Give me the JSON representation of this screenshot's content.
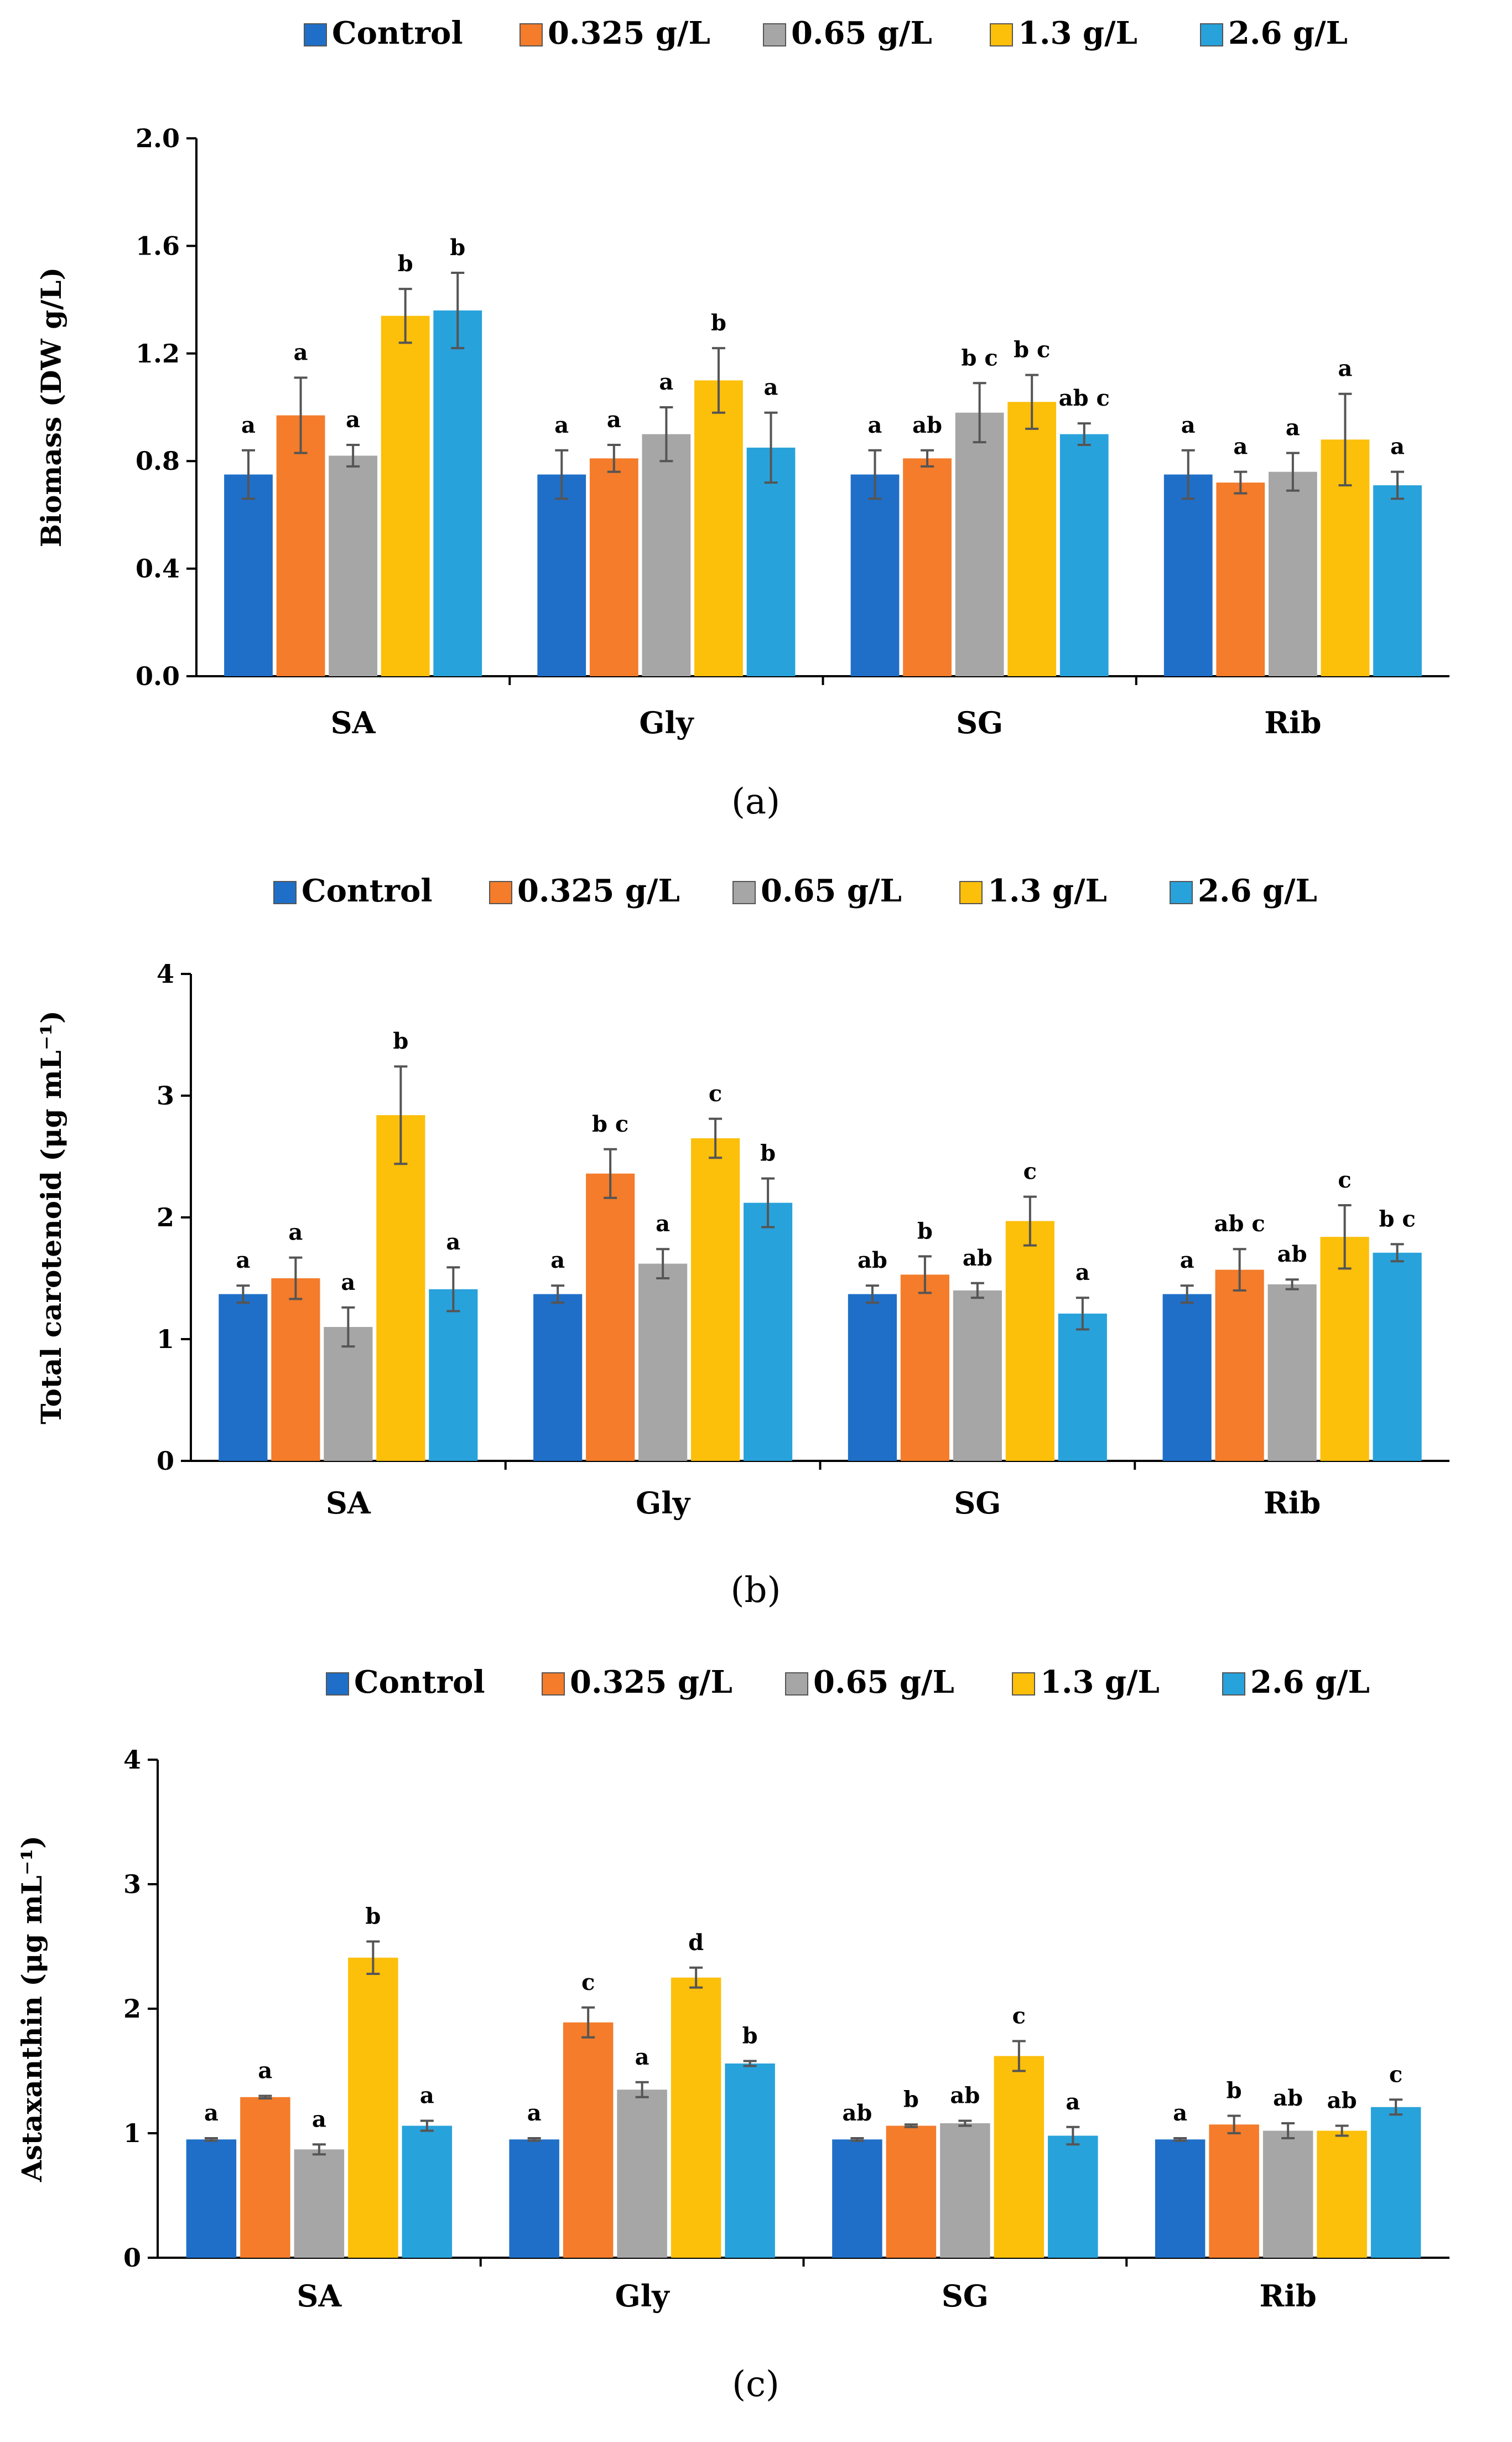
{
  "legend": [
    "Control",
    "0.325 g/L",
    "0.65 g/L",
    "1.3 g/L",
    "2.6 g/L"
  ],
  "colors": [
    "#1f6fc8",
    "#f47c2a",
    "#a6a6a6",
    "#fcbf0a",
    "#28a2db"
  ],
  "chart_data": [
    {
      "type": "bar",
      "caption": "(a)",
      "ylabel": "Biomass (DW g/L)",
      "categories": [
        "SA",
        "Gly",
        "SG",
        "Rib"
      ],
      "ylim": [
        0,
        2.0
      ],
      "yticks": [
        "0.0",
        "0.4",
        "0.8",
        "1.2",
        "1.6",
        "2.0"
      ],
      "ytick_values": [
        0,
        0.4,
        0.8,
        1.2,
        1.6,
        2.0
      ],
      "series": [
        {
          "name": "Control",
          "values": [
            0.75,
            0.75,
            0.75,
            0.75
          ],
          "errors": [
            0.09,
            0.09,
            0.09,
            0.09
          ],
          "letters": [
            "a",
            "a",
            "a",
            "a"
          ]
        },
        {
          "name": "0.325 g/L",
          "values": [
            0.97,
            0.81,
            0.81,
            0.72
          ],
          "errors": [
            0.14,
            0.05,
            0.03,
            0.04
          ],
          "letters": [
            "a",
            "a",
            "ab",
            "a"
          ]
        },
        {
          "name": "0.65 g/L",
          "values": [
            0.82,
            0.9,
            0.98,
            0.76
          ],
          "errors": [
            0.04,
            0.1,
            0.11,
            0.07
          ],
          "letters": [
            "a",
            "a",
            "b c",
            "a"
          ]
        },
        {
          "name": "1.3 g/L",
          "values": [
            1.34,
            1.1,
            1.02,
            0.88
          ],
          "errors": [
            0.1,
            0.12,
            0.1,
            0.17
          ],
          "letters": [
            "b",
            "b",
            "b c",
            "a"
          ]
        },
        {
          "name": "2.6 g/L",
          "values": [
            1.36,
            0.85,
            0.9,
            0.71
          ],
          "errors": [
            0.14,
            0.13,
            0.04,
            0.05
          ],
          "letters": [
            "b",
            "a",
            "ab c",
            "a"
          ]
        }
      ]
    },
    {
      "type": "bar",
      "caption": "(b)",
      "ylabel": "Total carotenoid (μg mL⁻¹)",
      "categories": [
        "SA",
        "Gly",
        "SG",
        "Rib"
      ],
      "ylim": [
        0,
        4
      ],
      "yticks": [
        "0",
        "1",
        "2",
        "3",
        "4"
      ],
      "ytick_values": [
        0,
        1,
        2,
        3,
        4
      ],
      "series": [
        {
          "name": "Control",
          "values": [
            1.37,
            1.37,
            1.37,
            1.37
          ],
          "errors": [
            0.07,
            0.07,
            0.07,
            0.07
          ],
          "letters": [
            "a",
            "a",
            "ab",
            "a"
          ]
        },
        {
          "name": "0.325 g/L",
          "values": [
            1.5,
            2.36,
            1.53,
            1.57
          ],
          "errors": [
            0.17,
            0.2,
            0.15,
            0.17
          ],
          "letters": [
            "a",
            "b c",
            "b",
            "ab c"
          ]
        },
        {
          "name": "0.65 g/L",
          "values": [
            1.1,
            1.62,
            1.4,
            1.45
          ],
          "errors": [
            0.16,
            0.12,
            0.06,
            0.04
          ],
          "letters": [
            "a",
            "a",
            "ab",
            "ab"
          ]
        },
        {
          "name": "1.3 g/L",
          "values": [
            2.84,
            2.65,
            1.97,
            1.84
          ],
          "errors": [
            0.4,
            0.16,
            0.2,
            0.26
          ],
          "letters": [
            "b",
            "c",
            "c",
            "c"
          ]
        },
        {
          "name": "2.6 g/L",
          "values": [
            1.41,
            2.12,
            1.21,
            1.71
          ],
          "errors": [
            0.18,
            0.2,
            0.13,
            0.07
          ],
          "letters": [
            "a",
            "b",
            "a",
            "b c"
          ]
        }
      ]
    },
    {
      "type": "bar",
      "caption": "(c)",
      "ylabel": "Astaxanthin (μg mL⁻¹)",
      "categories": [
        "SA",
        "Gly",
        "SG",
        "Rib"
      ],
      "ylim": [
        0,
        4
      ],
      "yticks": [
        "0",
        "1",
        "2",
        "3",
        "4"
      ],
      "ytick_values": [
        0,
        1,
        2,
        3,
        4
      ],
      "series": [
        {
          "name": "Control",
          "values": [
            0.95,
            0.95,
            0.95,
            0.95
          ],
          "errors": [
            0.01,
            0.01,
            0.01,
            0.01
          ],
          "letters": [
            "a",
            "a",
            "ab",
            "a"
          ]
        },
        {
          "name": "0.325 g/L",
          "values": [
            1.29,
            1.89,
            1.06,
            1.07
          ],
          "errors": [
            0.01,
            0.12,
            0.01,
            0.07
          ],
          "letters": [
            "a",
            "c",
            "b",
            "b"
          ]
        },
        {
          "name": "0.65 g/L",
          "values": [
            0.87,
            1.35,
            1.08,
            1.02
          ],
          "errors": [
            0.04,
            0.06,
            0.02,
            0.06
          ],
          "letters": [
            "a",
            "a",
            "ab",
            "ab"
          ]
        },
        {
          "name": "1.3 g/L",
          "values": [
            2.41,
            2.25,
            1.62,
            1.02
          ],
          "errors": [
            0.13,
            0.08,
            0.12,
            0.04
          ],
          "letters": [
            "b",
            "d",
            "c",
            "ab"
          ]
        },
        {
          "name": "2.6 g/L",
          "values": [
            1.06,
            1.56,
            0.98,
            1.21
          ],
          "errors": [
            0.04,
            0.02,
            0.07,
            0.06
          ],
          "letters": [
            "a",
            "b",
            "a",
            "c"
          ]
        }
      ]
    }
  ]
}
